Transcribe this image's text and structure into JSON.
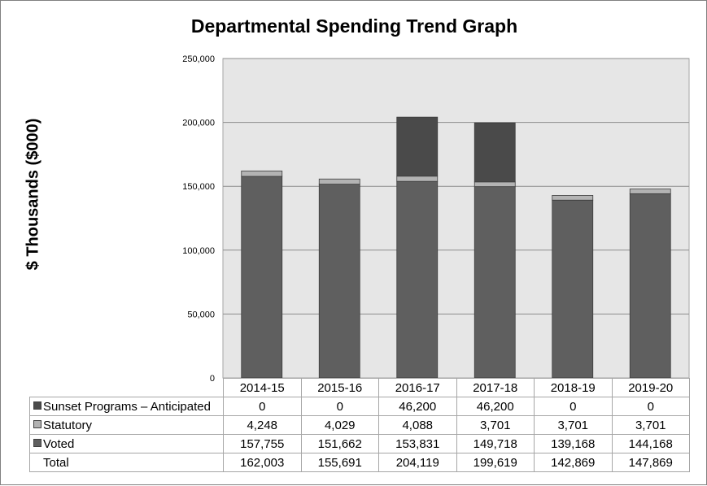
{
  "chart_data": {
    "type": "bar",
    "stacked": true,
    "title": "Departmental Spending Trend Graph",
    "ylabel": "$ Thousands ($000)",
    "xlabel": "",
    "ylim": [
      0,
      250000
    ],
    "y_ticks": [
      "250,000",
      "200,000",
      "150,000",
      "100,000",
      "50,000",
      "0"
    ],
    "y_tick_values": [
      250000,
      200000,
      150000,
      100000,
      50000,
      0
    ],
    "grid": true,
    "categories": [
      "2014-15",
      "2015-16",
      "2016-17",
      "2017-18",
      "2018-19",
      "2019-20"
    ],
    "series": [
      {
        "name": "Voted",
        "color": "#5f5f5f",
        "values": [
          157755,
          151662,
          153831,
          149718,
          139168,
          144168
        ],
        "labels": [
          "157,755",
          "151,662",
          "153,831",
          "149,718",
          "139,168",
          "144,168"
        ]
      },
      {
        "name": "Statutory",
        "color": "#b3b3b3",
        "values": [
          4248,
          4029,
          4088,
          3701,
          3701,
          3701
        ],
        "labels": [
          "4,248",
          "4,029",
          "4,088",
          "3,701",
          "3,701",
          "3,701"
        ]
      },
      {
        "name": "Sunset Programs – Anticipated",
        "color": "#4a4a4a",
        "values": [
          0,
          0,
          46200,
          46200,
          0,
          0
        ],
        "labels": [
          "0",
          "0",
          "46,200",
          "46,200",
          "0",
          "0"
        ]
      }
    ],
    "totals_label": "Total",
    "totals": [
      "162,003",
      "155,691",
      "204,119",
      "199,619",
      "142,869",
      "147,869"
    ],
    "plot_background": "#e6e6e6"
  }
}
